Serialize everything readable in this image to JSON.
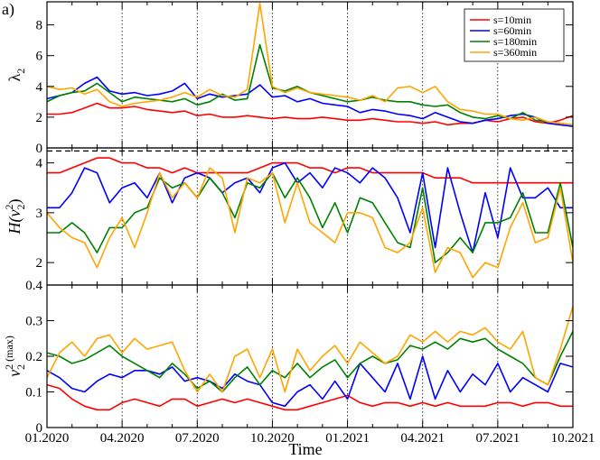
{
  "panel_label": "a)",
  "chart_data": {
    "type": "line",
    "xlabel": "Time",
    "x_ticks": [
      "01.2020",
      "04.2020",
      "07.2020",
      "10.2020",
      "01.2021",
      "04.2021",
      "07.2021",
      "10.2021"
    ],
    "xlim": [
      0,
      21
    ],
    "legend": {
      "placement": "top-right (upper panel)",
      "entries": [
        "s=10min",
        "s=60min",
        "s=180min",
        "s=360min"
      ]
    },
    "series_colors": [
      "#ff0000",
      "#0000ff",
      "#008000",
      "#ffa500"
    ],
    "vertical_dotted_lines_at": [
      3,
      6,
      9,
      12,
      15,
      18
    ],
    "panels": [
      {
        "id": "top",
        "ylabel": "λ",
        "ylabel_sub": "2",
        "ylim": [
          0,
          9.5
        ],
        "y_ticks": [
          0,
          2,
          4,
          6,
          8
        ],
        "dashed_reference_y": -0.2,
        "x": [
          0,
          0.5,
          1,
          1.5,
          2,
          2.5,
          3,
          3.5,
          4,
          4.5,
          5,
          5.5,
          6,
          6.5,
          7,
          7.5,
          8,
          8.5,
          9,
          9.5,
          10,
          10.5,
          11,
          11.5,
          12,
          12.5,
          13,
          13.5,
          14,
          14.5,
          15,
          15.5,
          16,
          16.5,
          17,
          17.5,
          18,
          18.5,
          19,
          19.5,
          20,
          20.5,
          21
        ],
        "series": [
          {
            "name": "s=10min",
            "values": [
              2.2,
              2.2,
              2.3,
              2.6,
              2.9,
              2.6,
              2.6,
              2.7,
              2.5,
              2.4,
              2.3,
              2.4,
              2.1,
              2.2,
              2.0,
              2.0,
              2.1,
              2.0,
              1.9,
              2.0,
              1.9,
              1.9,
              2.0,
              1.9,
              1.8,
              1.8,
              1.9,
              1.8,
              1.7,
              1.7,
              1.6,
              1.7,
              1.5,
              1.6,
              1.6,
              1.8,
              1.7,
              1.9,
              2.0,
              1.7,
              1.6,
              1.8,
              2.1
            ]
          },
          {
            "name": "s=60min",
            "values": [
              3.2,
              3.4,
              3.6,
              4.2,
              4.6,
              3.7,
              3.5,
              3.6,
              3.4,
              3.5,
              3.7,
              4.2,
              3.2,
              3.5,
              3.3,
              3.4,
              3.5,
              4.1,
              3.3,
              3.4,
              3.0,
              3.2,
              2.9,
              2.8,
              2.7,
              2.3,
              2.5,
              2.4,
              2.2,
              2.1,
              1.9,
              2.3,
              2.0,
              1.7,
              1.6,
              1.8,
              1.9,
              2.1,
              2.2,
              2.0,
              1.6,
              1.5,
              1.4
            ]
          },
          {
            "name": "s=180min",
            "values": [
              3.0,
              3.4,
              3.6,
              3.7,
              4.2,
              3.6,
              3.0,
              3.3,
              3.2,
              3.1,
              3.0,
              3.2,
              2.8,
              3.0,
              3.5,
              3.1,
              3.2,
              6.7,
              3.9,
              3.7,
              4.0,
              3.6,
              3.4,
              3.2,
              3.0,
              3.1,
              3.3,
              3.1,
              3.0,
              3.0,
              2.8,
              2.7,
              2.8,
              2.3,
              2.0,
              1.9,
              2.1,
              1.9,
              2.3,
              1.8,
              1.7,
              1.6,
              1.5
            ]
          },
          {
            "name": "s=360min",
            "values": [
              4.0,
              3.8,
              3.9,
              3.5,
              3.8,
              3.0,
              2.7,
              2.9,
              3.0,
              3.1,
              3.3,
              3.6,
              3.3,
              3.8,
              3.4,
              3.3,
              3.8,
              9.4,
              4.0,
              3.6,
              3.9,
              3.6,
              3.5,
              3.4,
              3.3,
              3.1,
              3.4,
              3.0,
              3.9,
              4.0,
              3.6,
              4.0,
              3.0,
              2.5,
              2.4,
              2.2,
              2.2,
              1.9,
              1.8,
              2.0,
              1.7,
              1.6,
              1.5
            ]
          }
        ]
      },
      {
        "id": "middle",
        "ylabel": "H(v",
        "ylabel_sub": "2",
        "ylabel_sup": "2",
        "ylabel_tail": ")",
        "ylim": [
          1.55,
          4.3
        ],
        "y_ticks": [
          2,
          3,
          4
        ],
        "x": [
          0,
          0.5,
          1,
          1.5,
          2,
          2.5,
          3,
          3.5,
          4,
          4.5,
          5,
          5.5,
          6,
          6.5,
          7,
          7.5,
          8,
          8.5,
          9,
          9.5,
          10,
          10.5,
          11,
          11.5,
          12,
          12.5,
          13,
          13.5,
          14,
          14.5,
          15,
          15.5,
          16,
          16.5,
          17,
          17.5,
          18,
          18.5,
          19,
          19.5,
          20,
          20.5,
          21
        ],
        "series": [
          {
            "name": "s=10min",
            "values": [
              3.8,
              3.8,
              3.9,
              4.0,
              4.1,
              4.1,
              4.0,
              4.0,
              3.9,
              3.9,
              3.8,
              3.9,
              3.8,
              3.8,
              3.8,
              3.8,
              3.8,
              3.9,
              4.0,
              4.0,
              4.0,
              3.9,
              3.9,
              3.8,
              3.9,
              3.9,
              3.8,
              3.8,
              3.8,
              3.8,
              3.8,
              3.7,
              3.7,
              3.7,
              3.6,
              3.6,
              3.6,
              3.6,
              3.6,
              3.6,
              3.6,
              3.6,
              3.6
            ]
          },
          {
            "name": "s=60min",
            "values": [
              3.1,
              3.1,
              3.4,
              3.9,
              3.8,
              3.2,
              3.5,
              3.6,
              3.3,
              3.8,
              3.2,
              3.7,
              3.8,
              3.7,
              3.4,
              3.6,
              3.7,
              3.4,
              3.9,
              4.0,
              3.6,
              3.8,
              3.5,
              3.9,
              3.8,
              3.6,
              3.9,
              3.7,
              3.3,
              2.6,
              3.8,
              2.3,
              3.9,
              3.0,
              2.2,
              3.4,
              2.5,
              3.9,
              3.3,
              3.3,
              3.5,
              3.1,
              3.1
            ]
          },
          {
            "name": "s=180min",
            "values": [
              2.6,
              2.6,
              2.8,
              2.6,
              2.2,
              2.7,
              2.7,
              3.0,
              3.1,
              3.7,
              3.5,
              3.6,
              3.3,
              3.7,
              3.4,
              2.9,
              3.6,
              3.5,
              3.8,
              3.3,
              3.7,
              3.3,
              2.7,
              3.2,
              2.6,
              3.3,
              3.2,
              2.8,
              2.4,
              2.3,
              3.5,
              2.0,
              2.2,
              2.5,
              2.2,
              2.8,
              2.8,
              2.9,
              3.4,
              2.6,
              2.6,
              3.6,
              2.3
            ]
          },
          {
            "name": "s=360min",
            "values": [
              3.0,
              2.7,
              2.5,
              2.4,
              1.9,
              2.5,
              2.9,
              2.3,
              3.0,
              3.8,
              3.3,
              3.6,
              3.3,
              3.9,
              3.7,
              2.6,
              3.7,
              3.6,
              3.8,
              2.8,
              3.6,
              2.8,
              2.6,
              2.4,
              3.0,
              3.0,
              2.9,
              2.3,
              2.2,
              2.4,
              3.1,
              1.8,
              2.3,
              2.2,
              1.7,
              2.0,
              1.9,
              2.7,
              3.2,
              2.4,
              2.5,
              3.5,
              2.0
            ]
          }
        ]
      },
      {
        "id": "bottom",
        "ylabel": "v",
        "ylabel_sub": "2",
        "ylabel_sup": "2 (max)",
        "ylim": [
          0,
          0.4
        ],
        "y_ticks": [
          0,
          0.1,
          0.2,
          0.3,
          0.4
        ],
        "x": [
          0,
          0.5,
          1,
          1.5,
          2,
          2.5,
          3,
          3.5,
          4,
          4.5,
          5,
          5.5,
          6,
          6.5,
          7,
          7.5,
          8,
          8.5,
          9,
          9.5,
          10,
          10.5,
          11,
          11.5,
          12,
          12.5,
          13,
          13.5,
          14,
          14.5,
          15,
          15.5,
          16,
          16.5,
          17,
          17.5,
          18,
          18.5,
          19,
          19.5,
          20,
          20.5,
          21
        ],
        "series": [
          {
            "name": "s=10min",
            "values": [
              0.12,
              0.11,
              0.08,
              0.06,
              0.05,
              0.05,
              0.07,
              0.08,
              0.07,
              0.06,
              0.08,
              0.08,
              0.06,
              0.07,
              0.08,
              0.07,
              0.08,
              0.07,
              0.06,
              0.05,
              0.05,
              0.06,
              0.07,
              0.08,
              0.09,
              0.07,
              0.06,
              0.07,
              0.07,
              0.06,
              0.07,
              0.06,
              0.07,
              0.06,
              0.06,
              0.06,
              0.07,
              0.07,
              0.06,
              0.07,
              0.07,
              0.06,
              0.06
            ]
          },
          {
            "name": "s=60min",
            "values": [
              0.16,
              0.14,
              0.11,
              0.1,
              0.13,
              0.15,
              0.14,
              0.16,
              0.16,
              0.15,
              0.17,
              0.13,
              0.14,
              0.13,
              0.11,
              0.15,
              0.13,
              0.12,
              0.07,
              0.06,
              0.1,
              0.12,
              0.08,
              0.13,
              0.08,
              0.18,
              0.14,
              0.1,
              0.18,
              0.08,
              0.2,
              0.08,
              0.16,
              0.1,
              0.15,
              0.12,
              0.18,
              0.1,
              0.14,
              0.12,
              0.1,
              0.18,
              0.17
            ]
          },
          {
            "name": "s=180min",
            "values": [
              0.21,
              0.2,
              0.18,
              0.19,
              0.21,
              0.23,
              0.2,
              0.18,
              0.16,
              0.14,
              0.18,
              0.15,
              0.11,
              0.13,
              0.1,
              0.14,
              0.17,
              0.12,
              0.16,
              0.14,
              0.18,
              0.14,
              0.17,
              0.19,
              0.14,
              0.18,
              0.2,
              0.18,
              0.19,
              0.23,
              0.22,
              0.24,
              0.22,
              0.25,
              0.24,
              0.25,
              0.22,
              0.2,
              0.18,
              0.14,
              0.12,
              0.2,
              0.27
            ]
          },
          {
            "name": "s=360min",
            "values": [
              0.14,
              0.21,
              0.24,
              0.2,
              0.25,
              0.26,
              0.21,
              0.25,
              0.22,
              0.23,
              0.24,
              0.16,
              0.1,
              0.15,
              0.1,
              0.2,
              0.22,
              0.14,
              0.22,
              0.1,
              0.22,
              0.16,
              0.2,
              0.23,
              0.18,
              0.24,
              0.21,
              0.18,
              0.2,
              0.26,
              0.24,
              0.27,
              0.24,
              0.27,
              0.26,
              0.28,
              0.24,
              0.22,
              0.27,
              0.14,
              0.12,
              0.22,
              0.34
            ]
          }
        ]
      }
    ]
  }
}
